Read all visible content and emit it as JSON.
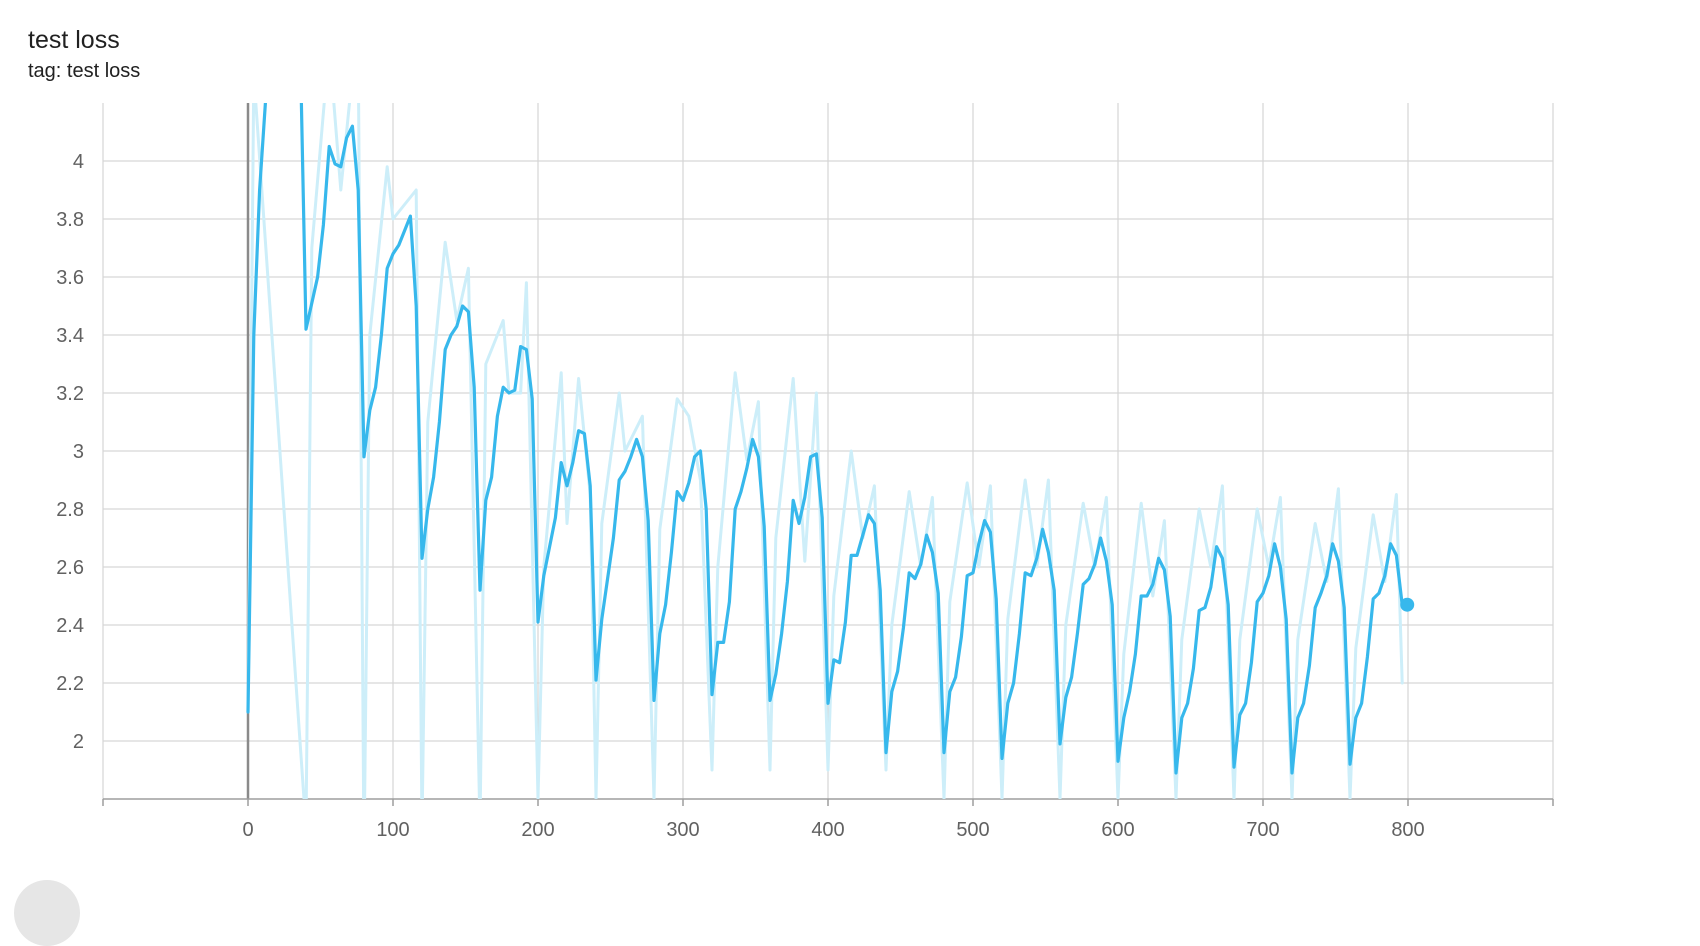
{
  "card": {
    "title": "test loss",
    "tag": "tag: test loss"
  },
  "colors": {
    "smoothed_line": "#37b8ec",
    "raw_line": "#cdeef9",
    "grid": "#d6d6d6",
    "axis": "#9e9e9e",
    "zero_line": "#8a8a8a"
  },
  "chart_data": {
    "type": "line",
    "title": "test loss",
    "xlabel": "",
    "ylabel": "",
    "xlim": [
      -100,
      900
    ],
    "ylim": [
      1.8,
      4.2
    ],
    "x_ticks": [
      0,
      100,
      200,
      300,
      400,
      500,
      600,
      700,
      800
    ],
    "y_ticks": [
      2,
      2.2,
      2.4,
      2.6,
      2.8,
      3,
      3.2,
      3.4,
      3.6,
      3.8,
      4
    ],
    "grid": true,
    "series": [
      {
        "role": "raw",
        "x": [
          0,
          4,
          40,
          44,
          56,
          64,
          72,
          76,
          80,
          84,
          96,
          100,
          116,
          120,
          124,
          136,
          144,
          152,
          160,
          164,
          176,
          180,
          188,
          192,
          200,
          204,
          216,
          220,
          228,
          236,
          240,
          244,
          256,
          260,
          272,
          280,
          284,
          296,
          304,
          312,
          320,
          324,
          336,
          344,
          352,
          360,
          364,
          376,
          384,
          392,
          400,
          404,
          416,
          424,
          432,
          440,
          444,
          456,
          464,
          472,
          480,
          484,
          496,
          504,
          512,
          520,
          524,
          536,
          544,
          552,
          560,
          564,
          576,
          584,
          592,
          600,
          604,
          616,
          624,
          632,
          640,
          644,
          656,
          664,
          672,
          680,
          684,
          696,
          704,
          712,
          720,
          724,
          736,
          744,
          752,
          760,
          764,
          776,
          784,
          792,
          796
        ],
        "y": [
          2.1,
          4.3,
          1.7,
          3.7,
          4.4,
          3.9,
          4.3,
          4.4,
          1.6,
          3.4,
          3.98,
          3.8,
          3.9,
          1.7,
          3.1,
          3.72,
          3.45,
          3.63,
          1.7,
          3.3,
          3.45,
          3.2,
          3.2,
          3.58,
          1.8,
          2.6,
          3.27,
          2.75,
          3.25,
          2.85,
          1.8,
          2.75,
          3.2,
          3.0,
          3.12,
          1.8,
          2.73,
          3.18,
          3.12,
          2.9,
          1.9,
          2.6,
          3.27,
          2.97,
          3.17,
          1.9,
          2.7,
          3.25,
          2.62,
          3.2,
          1.9,
          2.5,
          3.0,
          2.7,
          2.88,
          1.9,
          2.4,
          2.86,
          2.6,
          2.84,
          1.8,
          2.48,
          2.89,
          2.6,
          2.88,
          1.8,
          2.42,
          2.9,
          2.6,
          2.9,
          1.8,
          2.4,
          2.82,
          2.6,
          2.84,
          1.8,
          2.3,
          2.82,
          2.5,
          2.76,
          1.8,
          2.35,
          2.8,
          2.6,
          2.88,
          1.8,
          2.35,
          2.8,
          2.6,
          2.84,
          1.8,
          2.35,
          2.75,
          2.55,
          2.87,
          1.8,
          2.32,
          2.78,
          2.55,
          2.85,
          2.2
        ]
      },
      {
        "role": "smoothed",
        "x": [
          0,
          4,
          8,
          12,
          16,
          36,
          40,
          48,
          52,
          56,
          60,
          64,
          68,
          72,
          76,
          80,
          84,
          88,
          92,
          96,
          100,
          104,
          108,
          112,
          116,
          120,
          124,
          128,
          132,
          136,
          140,
          144,
          148,
          152,
          156,
          160,
          164,
          168,
          172,
          176,
          180,
          184,
          188,
          192,
          196,
          200,
          204,
          208,
          212,
          216,
          220,
          224,
          228,
          232,
          236,
          240,
          244,
          248,
          252,
          256,
          260,
          264,
          268,
          272,
          276,
          280,
          284,
          288,
          292,
          296,
          300,
          304,
          308,
          312,
          316,
          320,
          324,
          328,
          332,
          336,
          340,
          344,
          348,
          352,
          356,
          360,
          364,
          368,
          372,
          376,
          380,
          384,
          388,
          392,
          396,
          400,
          404,
          408,
          412,
          416,
          420,
          424,
          428,
          432,
          436,
          440,
          444,
          448,
          452,
          456,
          460,
          464,
          468,
          472,
          476,
          480,
          484,
          488,
          492,
          496,
          500,
          504,
          508,
          512,
          516,
          520,
          524,
          528,
          532,
          536,
          540,
          544,
          548,
          552,
          556,
          560,
          564,
          568,
          572,
          576,
          580,
          584,
          588,
          592,
          596,
          600,
          604,
          608,
          612,
          616,
          620,
          624,
          628,
          632,
          636,
          640,
          644,
          648,
          652,
          656,
          660,
          664,
          668,
          672,
          676,
          680,
          684,
          688,
          692,
          696,
          700,
          704,
          708,
          712,
          716,
          720,
          724,
          728,
          732,
          736,
          740,
          744,
          748,
          752,
          756,
          760,
          764,
          768,
          772,
          776,
          780,
          784,
          788,
          792,
          796
        ],
        "y": [
          2.1,
          3.4,
          3.9,
          4.2,
          4.4,
          4.4,
          3.42,
          3.6,
          3.78,
          4.05,
          3.99,
          3.98,
          4.08,
          4.12,
          3.9,
          2.98,
          3.14,
          3.22,
          3.4,
          3.63,
          3.68,
          3.71,
          3.76,
          3.81,
          3.5,
          2.63,
          2.8,
          2.91,
          3.1,
          3.35,
          3.4,
          3.43,
          3.5,
          3.48,
          3.22,
          2.52,
          2.83,
          2.91,
          3.12,
          3.22,
          3.2,
          3.21,
          3.36,
          3.35,
          3.18,
          2.41,
          2.57,
          2.67,
          2.77,
          2.96,
          2.88,
          2.96,
          3.07,
          3.06,
          2.88,
          2.21,
          2.42,
          2.56,
          2.7,
          2.9,
          2.93,
          2.98,
          3.04,
          2.98,
          2.76,
          2.14,
          2.37,
          2.47,
          2.65,
          2.86,
          2.83,
          2.89,
          2.98,
          3.0,
          2.8,
          2.16,
          2.34,
          2.34,
          2.48,
          2.8,
          2.86,
          2.94,
          3.04,
          2.98,
          2.74,
          2.14,
          2.23,
          2.37,
          2.55,
          2.83,
          2.75,
          2.84,
          2.98,
          2.99,
          2.77,
          2.13,
          2.28,
          2.27,
          2.41,
          2.64,
          2.64,
          2.71,
          2.78,
          2.75,
          2.52,
          1.96,
          2.17,
          2.24,
          2.39,
          2.58,
          2.56,
          2.61,
          2.71,
          2.65,
          2.51,
          1.96,
          2.17,
          2.22,
          2.36,
          2.57,
          2.58,
          2.68,
          2.76,
          2.72,
          2.49,
          1.94,
          2.13,
          2.2,
          2.37,
          2.58,
          2.57,
          2.63,
          2.73,
          2.65,
          2.52,
          1.99,
          2.15,
          2.22,
          2.37,
          2.54,
          2.56,
          2.61,
          2.7,
          2.62,
          2.47,
          1.93,
          2.08,
          2.17,
          2.3,
          2.5,
          2.5,
          2.54,
          2.63,
          2.59,
          2.43,
          1.89,
          2.08,
          2.13,
          2.25,
          2.45,
          2.46,
          2.53,
          2.67,
          2.63,
          2.47,
          1.91,
          2.09,
          2.13,
          2.27,
          2.48,
          2.51,
          2.57,
          2.68,
          2.6,
          2.42,
          1.89,
          2.08,
          2.13,
          2.26,
          2.46,
          2.51,
          2.57,
          2.68,
          2.62,
          2.46,
          1.92,
          2.08,
          2.13,
          2.29,
          2.49,
          2.51,
          2.57,
          2.68,
          2.64,
          2.47
        ]
      }
    ]
  }
}
